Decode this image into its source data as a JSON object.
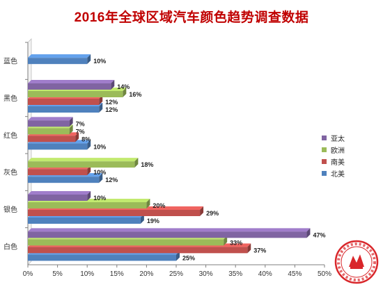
{
  "chart_data": {
    "type": "bar",
    "orientation": "horizontal",
    "title": "2016年全球区域汽车颜色趋势调查数据",
    "categories": [
      "白色",
      "银色",
      "灰色",
      "红色",
      "黑色",
      "蓝色"
    ],
    "series": [
      {
        "name": "北美",
        "color": "#4f81bd",
        "values": [
          25,
          19,
          12,
          10,
          12,
          10
        ]
      },
      {
        "name": "南美",
        "color": "#c0504d",
        "values": [
          37,
          29,
          10,
          8,
          12,
          null
        ]
      },
      {
        "name": "欧洲",
        "color": "#9bbb59",
        "values": [
          33,
          20,
          18,
          7,
          16,
          null
        ]
      },
      {
        "name": "亚太",
        "color": "#8064a2",
        "values": [
          47,
          10,
          null,
          7,
          14,
          null
        ]
      }
    ],
    "xlim": [
      0,
      50
    ],
    "x_ticks": [
      "0%",
      "5%",
      "10%",
      "15%",
      "20%",
      "25%",
      "30%",
      "35%",
      "40%",
      "45%",
      "50%"
    ],
    "value_suffix": "%",
    "legend_position": "right",
    "legend_order": [
      "亚太",
      "欧洲",
      "南美",
      "北美"
    ],
    "grid": false,
    "style": "3d"
  }
}
